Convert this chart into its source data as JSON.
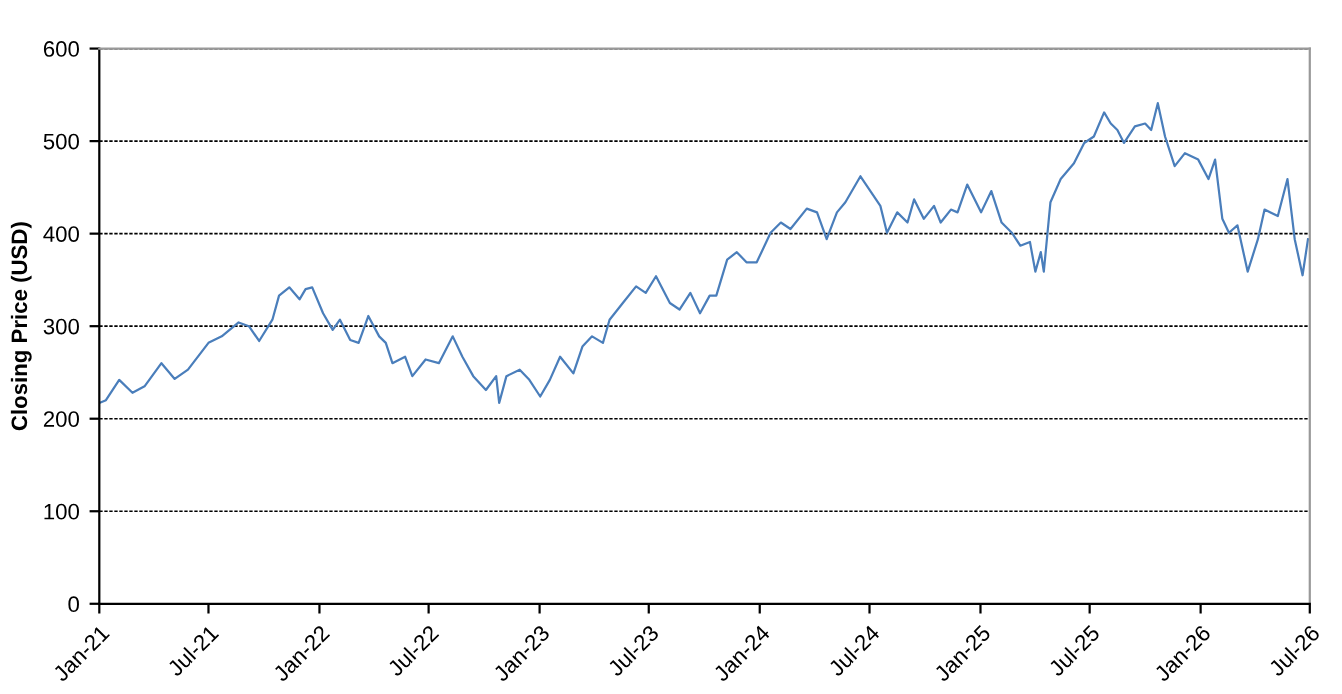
{
  "chart_data": {
    "type": "line",
    "ylabel": "Closing Price (USD)",
    "x": [
      "2021-01-01",
      "2021-01-12",
      "2021-02-03",
      "2021-02-25",
      "2021-03-17",
      "2021-04-14",
      "2021-05-06",
      "2021-05-28",
      "2021-07-01",
      "2021-07-23",
      "2021-08-20",
      "2021-09-06",
      "2021-09-23",
      "2021-10-15",
      "2021-10-26",
      "2021-11-12",
      "2021-11-29",
      "2021-12-09",
      "2021-12-20",
      "2022-01-07",
      "2022-01-23",
      "2022-02-04",
      "2022-02-21",
      "2022-03-07",
      "2022-03-23",
      "2022-04-10",
      "2022-04-21",
      "2022-05-02",
      "2022-05-23",
      "2022-06-04",
      "2022-06-26",
      "2022-07-18",
      "2022-08-10",
      "2022-08-26",
      "2022-09-13",
      "2022-10-04",
      "2022-10-21",
      "2022-10-26",
      "2022-11-07",
      "2022-11-29",
      "2022-12-15",
      "2023-01-02",
      "2023-01-18",
      "2023-02-04",
      "2023-02-26",
      "2023-03-13",
      "2023-03-29",
      "2023-04-16",
      "2023-04-27",
      "2023-05-19",
      "2023-06-10",
      "2023-06-26",
      "2023-07-13",
      "2023-08-05",
      "2023-08-21",
      "2023-09-08",
      "2023-09-24",
      "2023-10-10",
      "2023-10-21",
      "2023-11-08",
      "2023-11-24",
      "2023-12-10",
      "2023-12-27",
      "2024-01-19",
      "2024-02-05",
      "2024-02-21",
      "2024-03-19",
      "2024-04-05",
      "2024-04-21",
      "2024-05-08",
      "2024-05-22",
      "2024-06-16",
      "2024-07-19",
      "2024-07-30",
      "2024-08-16",
      "2024-09-02",
      "2024-09-13",
      "2024-09-29",
      "2024-10-16",
      "2024-10-27",
      "2024-11-13",
      "2024-11-24",
      "2024-12-10",
      "2025-01-02",
      "2025-01-19",
      "2025-02-05",
      "2025-02-22",
      "2025-03-08",
      "2025-03-24",
      "2025-04-02",
      "2025-04-11",
      "2025-04-16",
      "2025-04-27",
      "2025-05-14",
      "2025-06-05",
      "2025-06-22",
      "2025-07-08",
      "2025-07-25",
      "2025-08-05",
      "2025-08-16",
      "2025-08-27",
      "2025-09-14",
      "2025-10-01",
      "2025-10-11",
      "2025-10-22",
      "2025-11-03",
      "2025-11-19",
      "2025-12-06",
      "2025-12-28",
      "2026-01-14",
      "2026-01-25",
      "2026-02-06",
      "2026-02-17",
      "2026-03-03",
      "2026-03-20",
      "2026-04-06",
      "2026-04-17",
      "2026-05-09",
      "2026-05-25",
      "2026-06-06",
      "2026-06-19",
      "2026-06-28"
    ],
    "series": [
      {
        "color": "#4a7ebb",
        "values": [
          217,
          220,
          242,
          228,
          235,
          260,
          243,
          253,
          282,
          289,
          304,
          300,
          284,
          307,
          333,
          342,
          329,
          340,
          342,
          314,
          296,
          307,
          285,
          282,
          311,
          289,
          282,
          260,
          267,
          246,
          264,
          260,
          289,
          267,
          246,
          231,
          246,
          217,
          246,
          253,
          242,
          224,
          242,
          267,
          249,
          278,
          289,
          282,
          307,
          325,
          343,
          336,
          354,
          325,
          318,
          336,
          314,
          333,
          333,
          372,
          380,
          369,
          369,
          401,
          412,
          405,
          427,
          423,
          394,
          423,
          434,
          462,
          430,
          401,
          423,
          412,
          437,
          416,
          430,
          412,
          426,
          423,
          453,
          423,
          446,
          412,
          401,
          387,
          391,
          359,
          380,
          359,
          434,
          459,
          476,
          498,
          505,
          531,
          519,
          512,
          498,
          516,
          519,
          512,
          541,
          505,
          473,
          487,
          480,
          459,
          480,
          416,
          401,
          409,
          359,
          394,
          426,
          419,
          459,
          394,
          355,
          394
        ]
      }
    ],
    "xlim": [
      "2021-01-01",
      "2026-07-01"
    ],
    "xticks": [
      {
        "value": "2021-01",
        "label": "Jan-21"
      },
      {
        "value": "2021-07",
        "label": "Jul-21"
      },
      {
        "value": "2022-01",
        "label": "Jan-22"
      },
      {
        "value": "2022-07",
        "label": "Jul-22"
      },
      {
        "value": "2023-01",
        "label": "Jan-23"
      },
      {
        "value": "2023-07",
        "label": "Jul-23"
      },
      {
        "value": "2024-01",
        "label": "Jan-24"
      },
      {
        "value": "2024-07",
        "label": "Jul-24"
      },
      {
        "value": "2025-01",
        "label": "Jan-25"
      },
      {
        "value": "2025-07",
        "label": "Jul-25"
      },
      {
        "value": "2026-01",
        "label": "Jan-26"
      },
      {
        "value": "2026-07",
        "label": "Jul-26"
      }
    ],
    "ylim": [
      0,
      600
    ],
    "yticks": [
      0,
      100,
      200,
      300,
      400,
      500,
      600
    ],
    "grid": "y",
    "legend": false,
    "marker": "none",
    "line_style": "solid"
  }
}
